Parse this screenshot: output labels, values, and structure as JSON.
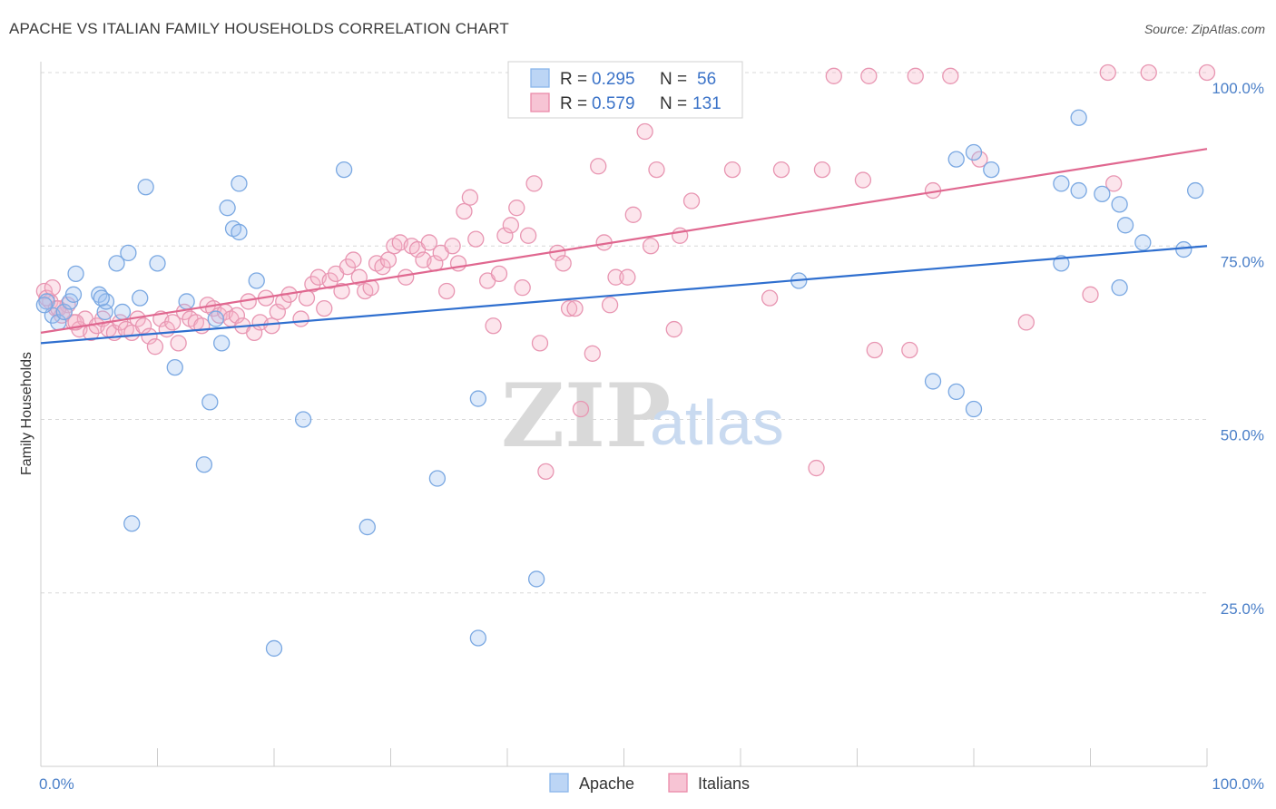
{
  "title": "APACHE VS ITALIAN FAMILY HOUSEHOLDS CORRELATION CHART",
  "source": "Source: ZipAtlas.com",
  "watermark": {
    "zip": "ZIP",
    "atlas": "atlas"
  },
  "legend_box": {
    "rows": [
      {
        "r_label": "R = ",
        "r_value": "0.295",
        "n_label": "N = ",
        "n_value": "56",
        "color": "#8ab6ea",
        "fill": "#bcd5f5"
      },
      {
        "r_label": "R = ",
        "r_value": "0.579",
        "n_label": "N = ",
        "n_value": "131",
        "color": "#ea8aa9",
        "fill": "#f7c4d4"
      }
    ]
  },
  "bottom_legend": [
    {
      "label": "Apache",
      "color": "#8ab6ea",
      "fill": "#bcd5f5"
    },
    {
      "label": "Italians",
      "color": "#ea8aa9",
      "fill": "#f7c4d4"
    }
  ],
  "colors": {
    "apache_stroke": "#7aa8e2",
    "apache_fill": "rgba(160,195,240,0.35)",
    "apache_line": "#2f6fcf",
    "italian_stroke": "#e896b2",
    "italian_fill": "rgba(245,180,200,0.35)",
    "italian_line": "#e06890",
    "grid": "#d8d8d8",
    "axis_tick": "#4a7fc8"
  },
  "chart_data": {
    "type": "scatter",
    "title": "APACHE VS ITALIAN FAMILY HOUSEHOLDS CORRELATION CHART",
    "xlabel": "",
    "ylabel": "Family Households",
    "xlim": [
      0,
      100
    ],
    "ylim": [
      0,
      100
    ],
    "x_tick_labels": [
      "0.0%",
      "100.0%"
    ],
    "y_ticks": [
      25,
      50,
      75,
      100
    ],
    "y_tick_labels": [
      "25.0%",
      "50.0%",
      "75.0%",
      "100.0%"
    ],
    "grid": true,
    "legend_position": "top-center",
    "series": [
      {
        "name": "Apache",
        "r": 0.295,
        "n": 56,
        "trend": {
          "x": [
            0,
            100
          ],
          "y": [
            61.0,
            75.0
          ]
        },
        "points": [
          [
            0.5,
            67.0
          ],
          [
            1.0,
            65.0
          ],
          [
            1.5,
            64.0
          ],
          [
            2.0,
            65.5
          ],
          [
            2.5,
            67.0
          ],
          [
            3.0,
            71.0
          ],
          [
            2.8,
            68.0
          ],
          [
            5.0,
            68.0
          ],
          [
            5.5,
            65.5
          ],
          [
            5.6,
            67.0
          ],
          [
            5.2,
            67.5
          ],
          [
            6.5,
            72.5
          ],
          [
            7.0,
            65.5
          ],
          [
            7.5,
            74.0
          ],
          [
            8.5,
            67.5
          ],
          [
            9.0,
            83.5
          ],
          [
            10.0,
            72.5
          ],
          [
            11.5,
            57.5
          ],
          [
            12.5,
            67.0
          ],
          [
            14.0,
            43.5
          ],
          [
            14.5,
            52.5
          ],
          [
            15.0,
            64.5
          ],
          [
            15.5,
            61.0
          ],
          [
            16.0,
            80.5
          ],
          [
            16.5,
            77.5
          ],
          [
            17.0,
            84.0
          ],
          [
            17.0,
            77.0
          ],
          [
            18.5,
            70.0
          ],
          [
            20.0,
            17.0
          ],
          [
            22.5,
            50.0
          ],
          [
            26.0,
            86.0
          ],
          [
            28.0,
            34.5
          ],
          [
            34.0,
            41.5
          ],
          [
            37.5,
            53.0
          ],
          [
            37.5,
            18.5
          ],
          [
            42.5,
            27.0
          ],
          [
            65.0,
            70.0
          ],
          [
            76.5,
            55.5
          ],
          [
            78.5,
            54.0
          ],
          [
            78.5,
            87.5
          ],
          [
            80.0,
            88.5
          ],
          [
            80.0,
            51.5
          ],
          [
            81.5,
            86.0
          ],
          [
            87.5,
            84.0
          ],
          [
            87.5,
            72.5
          ],
          [
            89.0,
            93.5
          ],
          [
            89.0,
            83.0
          ],
          [
            91.0,
            82.5
          ],
          [
            92.5,
            81.0
          ],
          [
            93.0,
            78.0
          ],
          [
            92.5,
            69.0
          ],
          [
            94.5,
            75.5
          ],
          [
            98.0,
            74.5
          ],
          [
            99.0,
            83.0
          ],
          [
            7.8,
            35.0
          ],
          [
            0.3,
            66.5
          ]
        ]
      },
      {
        "name": "Italians",
        "r": 0.579,
        "n": 131,
        "trend": {
          "x": [
            0,
            100
          ],
          "y": [
            62.5,
            89.0
          ]
        },
        "points": [
          [
            0.3,
            68.5
          ],
          [
            0.8,
            67.0
          ],
          [
            1.3,
            66.0
          ],
          [
            1.8,
            65.0
          ],
          [
            2.3,
            66.5
          ],
          [
            2.8,
            64.0
          ],
          [
            3.3,
            63.0
          ],
          [
            3.8,
            64.5
          ],
          [
            4.3,
            62.5
          ],
          [
            4.8,
            63.5
          ],
          [
            5.3,
            64.5
          ],
          [
            5.8,
            63.0
          ],
          [
            6.3,
            62.5
          ],
          [
            6.8,
            64.0
          ],
          [
            7.3,
            63.0
          ],
          [
            7.8,
            62.5
          ],
          [
            8.3,
            64.5
          ],
          [
            8.8,
            63.5
          ],
          [
            9.3,
            62.0
          ],
          [
            9.8,
            60.5
          ],
          [
            10.3,
            64.5
          ],
          [
            10.8,
            63.0
          ],
          [
            11.3,
            64.0
          ],
          [
            11.8,
            61.0
          ],
          [
            12.3,
            65.5
          ],
          [
            12.8,
            64.5
          ],
          [
            13.3,
            64.0
          ],
          [
            13.8,
            63.5
          ],
          [
            14.3,
            66.5
          ],
          [
            14.8,
            66.0
          ],
          [
            15.3,
            65.0
          ],
          [
            15.8,
            65.5
          ],
          [
            16.3,
            64.5
          ],
          [
            16.8,
            65.0
          ],
          [
            17.3,
            63.5
          ],
          [
            17.8,
            67.0
          ],
          [
            18.3,
            62.5
          ],
          [
            18.8,
            64.0
          ],
          [
            19.3,
            67.5
          ],
          [
            19.8,
            63.5
          ],
          [
            20.3,
            65.5
          ],
          [
            20.8,
            67.0
          ],
          [
            21.3,
            68.0
          ],
          [
            22.3,
            64.5
          ],
          [
            22.8,
            67.5
          ],
          [
            23.3,
            69.5
          ],
          [
            23.8,
            70.5
          ],
          [
            24.3,
            66.0
          ],
          [
            24.8,
            70.0
          ],
          [
            25.3,
            71.0
          ],
          [
            25.8,
            68.5
          ],
          [
            26.3,
            72.0
          ],
          [
            26.8,
            73.0
          ],
          [
            27.3,
            70.5
          ],
          [
            27.8,
            68.5
          ],
          [
            28.3,
            69.0
          ],
          [
            28.8,
            72.5
          ],
          [
            29.3,
            72.0
          ],
          [
            29.8,
            73.0
          ],
          [
            30.3,
            75.0
          ],
          [
            30.8,
            75.5
          ],
          [
            31.3,
            70.5
          ],
          [
            31.8,
            75.0
          ],
          [
            32.3,
            74.5
          ],
          [
            32.8,
            73.0
          ],
          [
            33.3,
            75.5
          ],
          [
            33.8,
            72.5
          ],
          [
            34.3,
            74.0
          ],
          [
            34.8,
            68.5
          ],
          [
            35.3,
            75.0
          ],
          [
            35.8,
            72.5
          ],
          [
            36.3,
            80.0
          ],
          [
            36.8,
            82.0
          ],
          [
            37.3,
            76.0
          ],
          [
            38.3,
            70.0
          ],
          [
            38.8,
            63.5
          ],
          [
            39.3,
            71.0
          ],
          [
            39.8,
            76.5
          ],
          [
            40.3,
            78.0
          ],
          [
            40.8,
            80.5
          ],
          [
            41.3,
            69.0
          ],
          [
            41.8,
            76.5
          ],
          [
            42.3,
            84.0
          ],
          [
            42.8,
            61.0
          ],
          [
            43.3,
            42.5
          ],
          [
            44.3,
            74.0
          ],
          [
            44.8,
            72.5
          ],
          [
            45.3,
            66.0
          ],
          [
            45.8,
            66.0
          ],
          [
            46.3,
            51.5
          ],
          [
            47.3,
            59.5
          ],
          [
            47.8,
            86.5
          ],
          [
            48.3,
            75.5
          ],
          [
            48.8,
            66.5
          ],
          [
            49.3,
            70.5
          ],
          [
            50.3,
            70.5
          ],
          [
            50.8,
            79.5
          ],
          [
            51.8,
            91.5
          ],
          [
            52.3,
            75.0
          ],
          [
            52.8,
            86.0
          ],
          [
            53.3,
            99.5
          ],
          [
            54.3,
            63.0
          ],
          [
            54.8,
            76.5
          ],
          [
            55.8,
            81.5
          ],
          [
            56.8,
            99.5
          ],
          [
            59.3,
            86.0
          ],
          [
            62.5,
            67.5
          ],
          [
            63.5,
            86.0
          ],
          [
            66.5,
            43.0
          ],
          [
            67.0,
            86.0
          ],
          [
            70.5,
            84.5
          ],
          [
            71.5,
            60.0
          ],
          [
            71.0,
            99.5
          ],
          [
            74.5,
            60.0
          ],
          [
            75.0,
            99.5
          ],
          [
            76.5,
            83.0
          ],
          [
            78.0,
            99.5
          ],
          [
            80.5,
            87.5
          ],
          [
            84.5,
            64.0
          ],
          [
            90.0,
            68.0
          ],
          [
            91.5,
            100.0
          ],
          [
            92.0,
            84.0
          ],
          [
            95.0,
            100.0
          ],
          [
            100.0,
            100.0
          ],
          [
            50.5,
            99.5
          ],
          [
            68.0,
            99.5
          ],
          [
            0.5,
            67.5
          ],
          [
            1.0,
            69.0
          ],
          [
            1.5,
            66.0
          ],
          [
            2.0,
            65.5
          ],
          [
            3.0,
            64.0
          ]
        ]
      }
    ]
  }
}
